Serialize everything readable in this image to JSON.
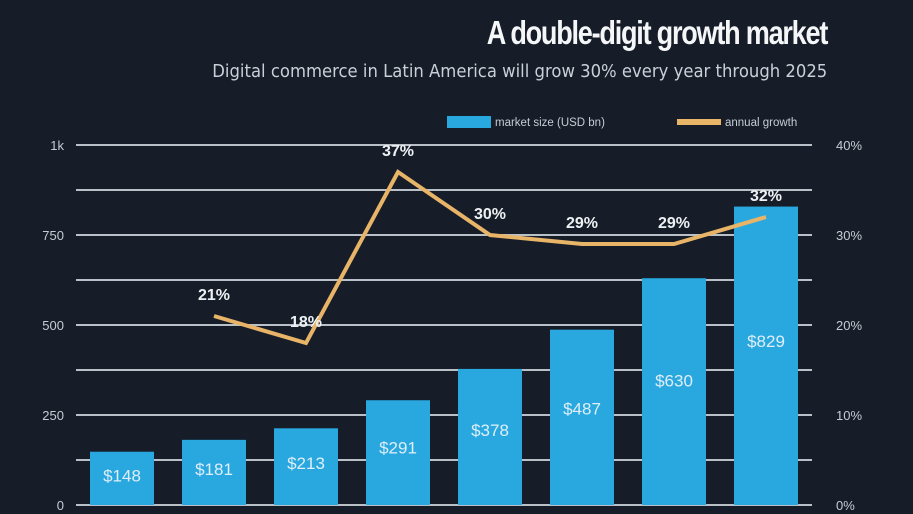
{
  "chart_data": {
    "type": "bar",
    "title": "A double-digit growth market",
    "subtitle": "Digital commerce in Latin America will grow 30% every year through 2025",
    "categories": [
      "",
      "",
      "",
      "",
      "",
      "",
      "",
      ""
    ],
    "series": [
      {
        "name": "market size (USD bn)",
        "type": "bar",
        "axis": "left",
        "color": "#29a8e0",
        "values": [
          148,
          181,
          213,
          291,
          378,
          487,
          630,
          829
        ],
        "labels": [
          "$148",
          "$181",
          "$213",
          "$291",
          "$378",
          "$487",
          "$630",
          "$829"
        ]
      },
      {
        "name": "annual growth",
        "type": "line",
        "axis": "right",
        "color": "#e8b468",
        "values": [
          null,
          21,
          18,
          37,
          30,
          29,
          29,
          32
        ],
        "labels": [
          "",
          "21%",
          "18%",
          "37%",
          "30%",
          "29%",
          "29%",
          "32%"
        ]
      }
    ],
    "y_left": {
      "range": [
        0,
        1000
      ],
      "ticks": [
        0,
        250,
        500,
        750,
        1000
      ],
      "tick_labels": [
        "0",
        "250",
        "500",
        "750",
        "1k"
      ],
      "minor_ticks": [
        125,
        375,
        625,
        875
      ]
    },
    "y_right": {
      "range": [
        0,
        40
      ],
      "ticks": [
        0,
        10,
        20,
        30,
        40
      ],
      "tick_labels": [
        "0%",
        "10%",
        "20%",
        "30%",
        "40%"
      ]
    },
    "grid": true,
    "legend": {
      "position": "top-right",
      "entries": [
        "market size (USD bn)",
        "annual growth"
      ]
    },
    "background": "#161d28"
  }
}
